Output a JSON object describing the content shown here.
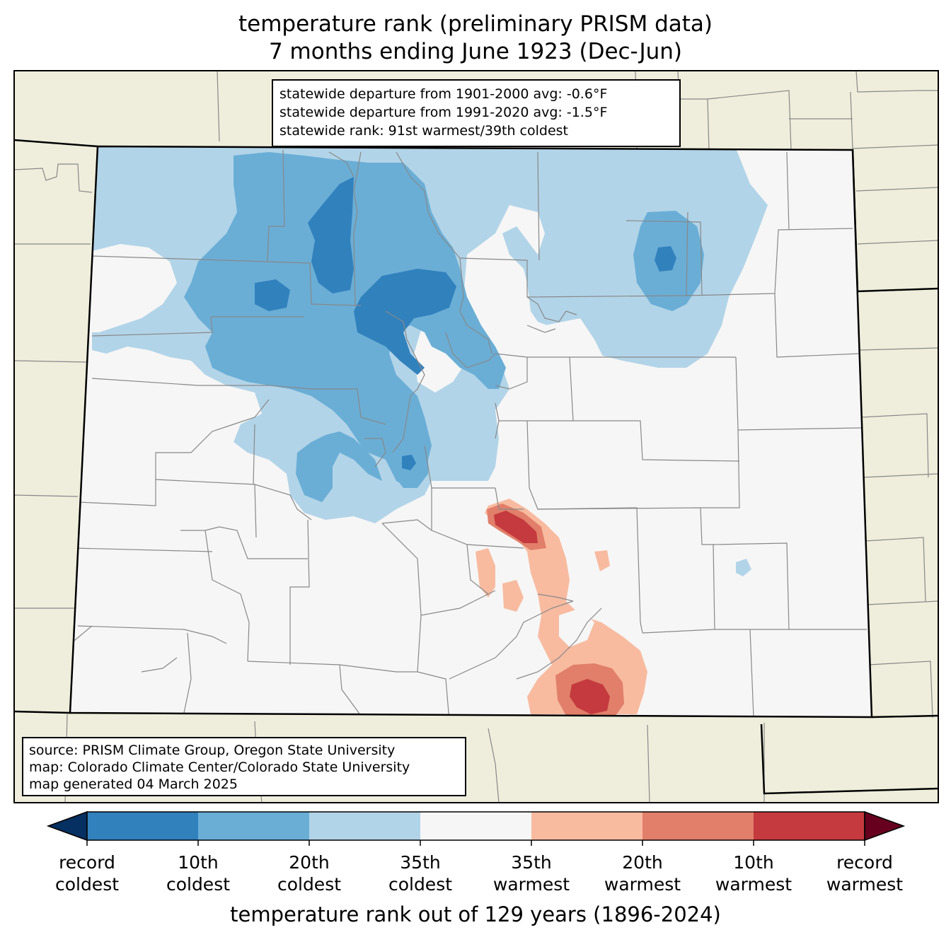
{
  "title": {
    "line1": "temperature rank (preliminary PRISM data)",
    "line2": "7 months ending June 1923 (Dec-Jun)"
  },
  "stats": {
    "line1": "statewide departure from 1901-2000 avg: -0.6°F",
    "line2": "statewide departure from 1991-2020 avg: -1.5°F",
    "line3": "statewide rank: 91st warmest/39th coldest"
  },
  "source": {
    "line1": "source: PRISM Climate Group, Oregon State University",
    "line2": "map: Colorado Climate Center/Colorado State University",
    "line3": "map generated 04 March 2025"
  },
  "colorbar": {
    "label": "temperature rank out of 129 years (1896-2024)",
    "ticks": [
      {
        "line1": "record",
        "line2": "coldest"
      },
      {
        "line1": "10th",
        "line2": "coldest"
      },
      {
        "line1": "20th",
        "line2": "coldest"
      },
      {
        "line1": "35th",
        "line2": "coldest"
      },
      {
        "line1": "35th",
        "line2": "warmest"
      },
      {
        "line1": "20th",
        "line2": "warmest"
      },
      {
        "line1": "10th",
        "line2": "warmest"
      },
      {
        "line1": "record",
        "line2": "warmest"
      }
    ],
    "colors": {
      "below_record_coldest": "#053061",
      "record_to_10th_coldest": "#3181bd",
      "10th_to_20th_coldest": "#6aaed6",
      "20th_to_35th_coldest": "#b2d4e8",
      "near_normal": "#f6f6f6",
      "35th_to_20th_warmest": "#f8bba0",
      "20th_to_10th_warmest": "#e17f6a",
      "10th_warmest_to_record": "#c43a3e",
      "above_record_warmest": "#67001f"
    }
  },
  "map_colors": {
    "background_land": "#efeedc",
    "county_lines": "#888888",
    "state_lines": "#000000"
  }
}
